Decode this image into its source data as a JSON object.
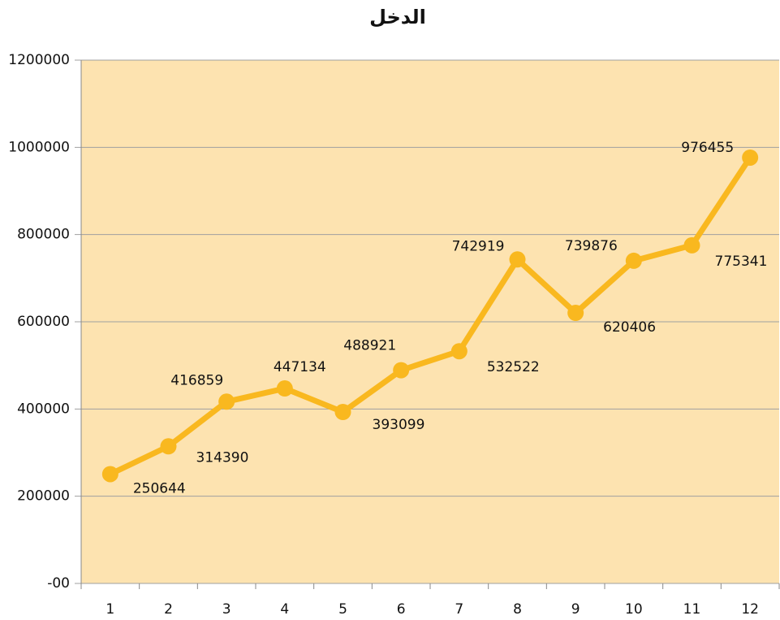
{
  "chart_data": {
    "type": "line",
    "title": "الدخل",
    "categories": [
      "1",
      "2",
      "3",
      "4",
      "5",
      "6",
      "7",
      "8",
      "9",
      "10",
      "11",
      "12"
    ],
    "series": [
      {
        "name": "الدخل",
        "color": "#f9b81f",
        "values": [
          250644,
          314390,
          416859,
          447134,
          393099,
          488921,
          532522,
          742919,
          620406,
          739876,
          775341,
          976455
        ]
      }
    ],
    "ylim": [
      0,
      1200000
    ],
    "yticks": [
      {
        "value": 0,
        "label": "-00"
      },
      200000,
      400000,
      600000,
      800000,
      1000000,
      1200000
    ],
    "grid": true,
    "background": "#fde3b0"
  }
}
